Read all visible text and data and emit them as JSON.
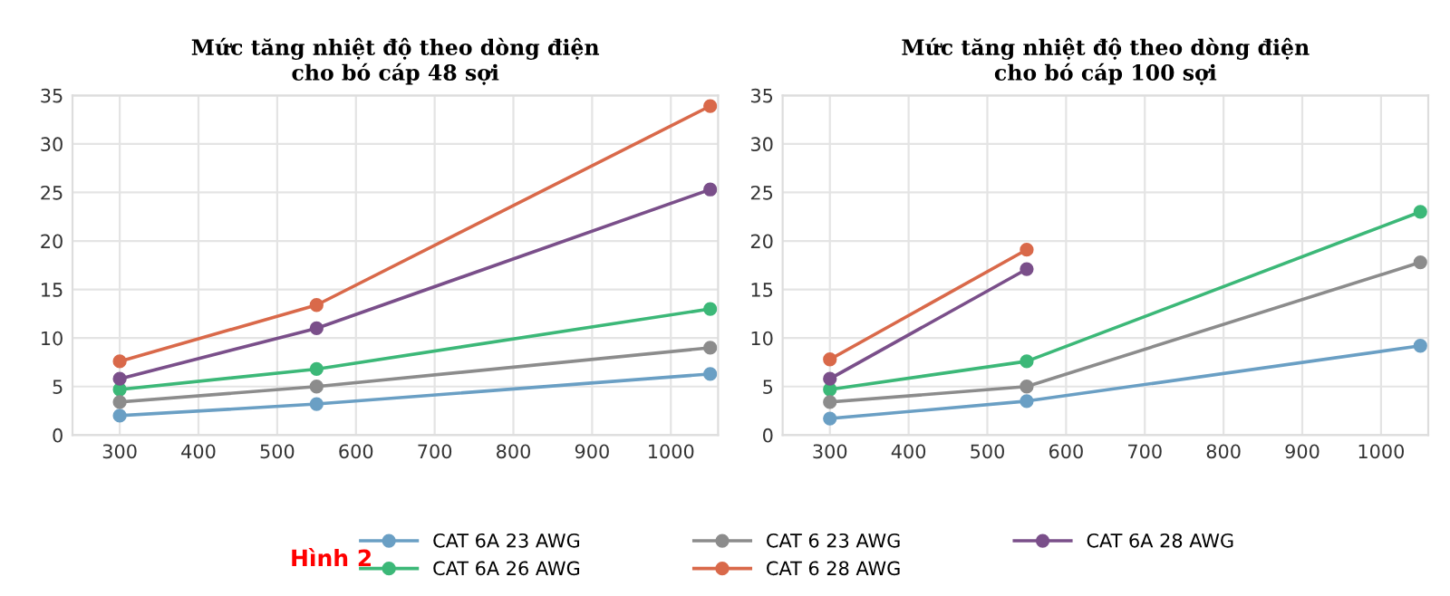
{
  "chart_data": [
    {
      "type": "line",
      "title": "Mức tăng nhiệt độ theo dòng điện\ncho bó cáp 48 sợi",
      "x": [
        300,
        550,
        1050
      ],
      "xlim": [
        240,
        1060
      ],
      "xticks": [
        300,
        400,
        500,
        600,
        700,
        800,
        900,
        1000
      ],
      "ylim": [
        0,
        35
      ],
      "yticks": [
        0,
        5,
        10,
        15,
        20,
        25,
        30,
        35
      ],
      "grid": true,
      "marker": "circle",
      "legend": "bottom",
      "annotations": [
        "Hình 2"
      ],
      "series": [
        {
          "name": "CAT 6A 23 AWG",
          "color": "#6a9fc4",
          "values": [
            2,
            3.2,
            6.3
          ]
        },
        {
          "name": "CAT 6A 26 AWG",
          "color": "#3cb878",
          "values": [
            4.7,
            6.8,
            13
          ]
        },
        {
          "name": "CAT 6 23 AWG",
          "color": "#8c8c8c",
          "values": [
            3.4,
            5,
            9
          ]
        },
        {
          "name": "CAT 6 28 AWG",
          "color": "#d9694a",
          "values": [
            7.6,
            13.4,
            33.9
          ]
        },
        {
          "name": "CAT 6A 28 AWG",
          "color": "#7a4f8a",
          "values": [
            5.8,
            11,
            25.3
          ]
        }
      ]
    },
    {
      "type": "line",
      "title": "Mức tăng nhiệt độ theo dòng điện\ncho bó cáp 100 sợi",
      "x": [
        300,
        550,
        1050
      ],
      "xlim": [
        240,
        1060
      ],
      "xticks": [
        300,
        400,
        500,
        600,
        700,
        800,
        900,
        1000
      ],
      "ylim": [
        0,
        35
      ],
      "yticks": [
        0,
        5,
        10,
        15,
        20,
        25,
        30,
        35
      ],
      "grid": true,
      "marker": "circle",
      "series": [
        {
          "color": "#6a9fc4",
          "values": [
            1.7,
            3.5,
            9.2
          ]
        },
        {
          "color": "#3cb878",
          "values": [
            4.7,
            7.6,
            23
          ]
        },
        {
          "color": "#8c8c8c",
          "values": [
            3.4,
            5,
            17.8
          ]
        },
        {
          "color": "#d9694a",
          "values": [
            7.8,
            19.1,
            null
          ]
        },
        {
          "color": "#7a4f8a",
          "values": [
            5.8,
            17.1,
            null
          ]
        }
      ]
    }
  ]
}
